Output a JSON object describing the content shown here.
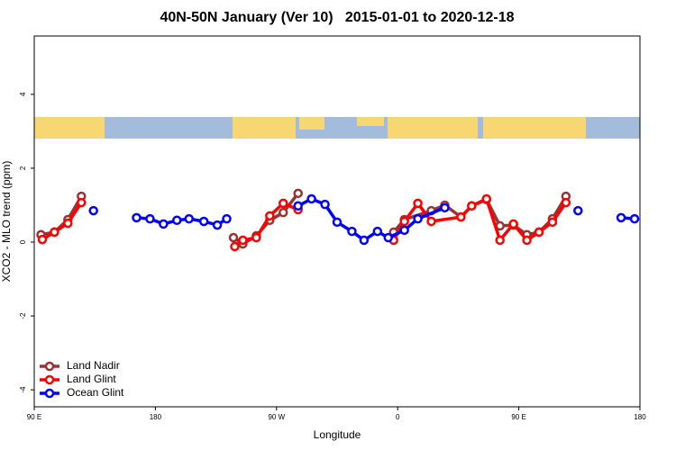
{
  "chart_data": {
    "type": "line",
    "title": "40N-50N January (Ver 10)   2015-01-01 to 2020-12-18",
    "xlabel": "Longitude",
    "ylabel": "XCO2 - MLO trend (ppm)",
    "xlim": [
      90,
      540
    ],
    "ylim": [
      -4.46,
      5.58
    ],
    "xticks": [
      {
        "value": 90,
        "label": "90 E"
      },
      {
        "value": 180,
        "label": "180"
      },
      {
        "value": 270,
        "label": "90 W"
      },
      {
        "value": 360,
        "label": "0"
      },
      {
        "value": 450,
        "label": "90 E"
      },
      {
        "value": 540,
        "label": "180"
      }
    ],
    "yticks": [
      -4,
      -2,
      0,
      2,
      4
    ],
    "legend": "bottom-left",
    "series": [
      {
        "name": "Land Nadir",
        "color": "#993333",
        "x": [
          95,
          105,
          115,
          125,
          null,
          238,
          245,
          255,
          265,
          275,
          286,
          null,
          357,
          365,
          385,
          395,
          407,
          415,
          426,
          436,
          446,
          456,
          465,
          475,
          485
        ],
        "values": [
          0.2,
          0.27,
          0.61,
          1.24,
          null,
          0.12,
          -0.05,
          0.17,
          0.59,
          0.8,
          1.32,
          null,
          0.27,
          0.61,
          0.85,
          1.0,
          0.68,
          0.98,
          1.15,
          0.44,
          0.46,
          0.2,
          0.27,
          0.63,
          1.24
        ]
      },
      {
        "name": "Land Glint",
        "color": "#ff0000",
        "x": [
          96,
          105,
          115,
          125,
          null,
          239,
          245,
          255,
          265,
          275,
          286,
          null,
          357,
          365,
          375,
          385,
          407,
          415,
          426,
          436,
          446,
          456,
          465,
          475,
          485
        ],
        "values": [
          0.07,
          0.27,
          0.51,
          1.07,
          null,
          -0.12,
          0.05,
          0.12,
          0.71,
          1.05,
          0.88,
          null,
          0.05,
          0.56,
          1.05,
          0.56,
          0.68,
          0.98,
          1.17,
          0.05,
          0.49,
          0.05,
          0.27,
          0.54,
          1.07
        ]
      },
      {
        "name": "Ocean Glint",
        "color": "#0000ff",
        "x": [
          134,
          null,
          166,
          176,
          186,
          196,
          205,
          216,
          226,
          233,
          null,
          286,
          296,
          306,
          315,
          326,
          335,
          345,
          353,
          365,
          375,
          395,
          null,
          494,
          null,
          526,
          536
        ],
        "values": [
          0.85,
          null,
          0.66,
          0.63,
          0.49,
          0.59,
          0.63,
          0.56,
          0.46,
          0.63,
          null,
          0.98,
          1.17,
          1.02,
          0.54,
          0.29,
          0.05,
          0.29,
          0.12,
          0.32,
          0.63,
          0.93,
          null,
          0.85,
          null,
          0.66,
          0.63
        ]
      }
    ]
  }
}
